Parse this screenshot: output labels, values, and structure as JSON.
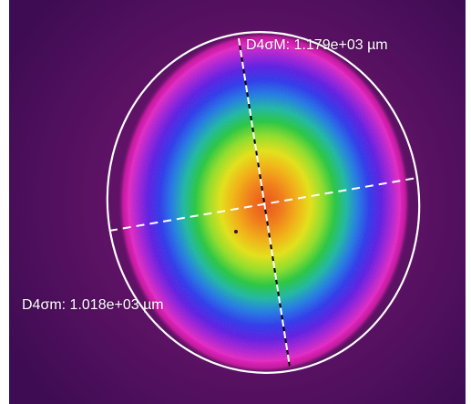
{
  "measurements": {
    "major_axis": "D4σM: 1.179e+03 µm",
    "minor_axis": "D4σm: 1.018e+03 µm"
  },
  "colors": {
    "background_outer": "#4a0f5e",
    "background_inner": "#7a1478",
    "ellipse": "#ffffff",
    "crosshair": "#ffffff",
    "label": "#ffffff",
    "beam_center": "#f06a10"
  }
}
